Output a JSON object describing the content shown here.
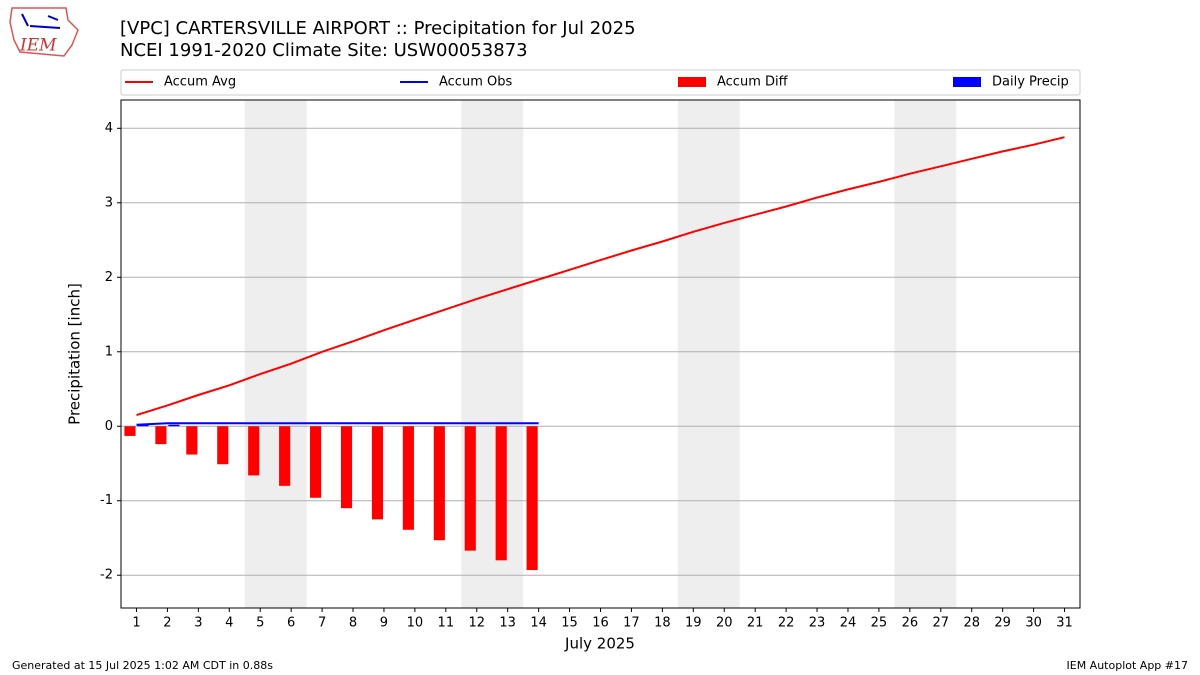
{
  "logo_text": "IEM",
  "footer_left": "Generated at 15 Jul 2025 1:02 AM CDT in 0.88s",
  "footer_right": "IEM Autoplot App #17",
  "chart_data": {
    "type": "line",
    "title": "[VPC] CARTERSVILLE AIRPORT :: Precipitation for Jul 2025",
    "subtitle": "NCEI 1991-2020 Climate Site: USW00053873",
    "xlabel": "July 2025",
    "ylabel": "Precipitation [inch]",
    "x": [
      1,
      2,
      3,
      4,
      5,
      6,
      7,
      8,
      9,
      10,
      11,
      12,
      13,
      14,
      15,
      16,
      17,
      18,
      19,
      20,
      21,
      22,
      23,
      24,
      25,
      26,
      27,
      28,
      29,
      30,
      31
    ],
    "xlim": [
      0.5,
      31.5
    ],
    "xticks": [
      1,
      2,
      3,
      4,
      5,
      6,
      7,
      8,
      9,
      10,
      11,
      12,
      13,
      14,
      15,
      16,
      17,
      18,
      19,
      20,
      21,
      22,
      23,
      24,
      25,
      26,
      27,
      28,
      29,
      30,
      31
    ],
    "ylim": [
      -2.44,
      4.38
    ],
    "yticks": [
      -2,
      -1,
      0,
      1,
      2,
      3,
      4
    ],
    "grid": true,
    "legend": "top",
    "shaded_spans": [
      [
        4.5,
        6.5
      ],
      [
        11.5,
        13.5
      ],
      [
        18.5,
        20.5
      ],
      [
        25.5,
        27.5
      ]
    ],
    "shade_color": "#eeeeee",
    "series": [
      {
        "name": "Accum Avg",
        "color": "#ff0000",
        "style": "line",
        "values": [
          0.15,
          0.28,
          0.42,
          0.55,
          0.7,
          0.84,
          1.0,
          1.14,
          1.29,
          1.43,
          1.57,
          1.71,
          1.84,
          1.97,
          2.1,
          2.23,
          2.36,
          2.48,
          2.61,
          2.73,
          2.84,
          2.95,
          3.07,
          3.18,
          3.28,
          3.39,
          3.49,
          3.59,
          3.69,
          3.78,
          3.88
        ]
      },
      {
        "name": "Accum Obs",
        "color": "#0000ff",
        "style": "line",
        "values": [
          0.02,
          0.04,
          0.04,
          0.04,
          0.04,
          0.04,
          0.04,
          0.04,
          0.04,
          0.04,
          0.04,
          0.04,
          0.04,
          0.04,
          null,
          null,
          null,
          null,
          null,
          null,
          null,
          null,
          null,
          null,
          null,
          null,
          null,
          null,
          null,
          null,
          null
        ]
      },
      {
        "name": "Accum Diff",
        "color": "#ff0000",
        "style": "bar",
        "values": [
          -0.13,
          -0.24,
          -0.38,
          -0.51,
          -0.66,
          -0.8,
          -0.96,
          -1.1,
          -1.25,
          -1.39,
          -1.53,
          -1.67,
          -1.8,
          -1.93,
          null,
          null,
          null,
          null,
          null,
          null,
          null,
          null,
          null,
          null,
          null,
          null,
          null,
          null,
          null,
          null,
          null
        ]
      },
      {
        "name": "Daily Precip",
        "color": "#0000ff",
        "style": "bar",
        "values": [
          0.02,
          0.02,
          0,
          0,
          0,
          0,
          0,
          0,
          0,
          0,
          0,
          0,
          0,
          0,
          null,
          null,
          null,
          null,
          null,
          null,
          null,
          null,
          null,
          null,
          null,
          null,
          null,
          null,
          null,
          null,
          null
        ]
      }
    ]
  }
}
